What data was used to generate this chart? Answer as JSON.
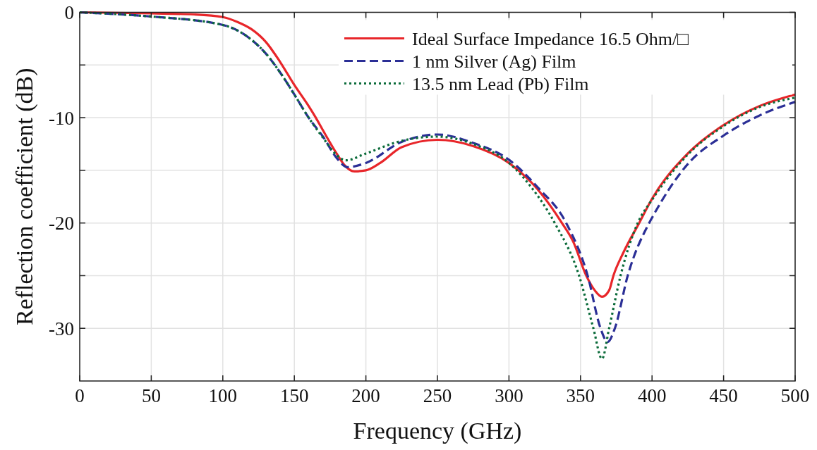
{
  "chart_data": {
    "type": "line",
    "xlabel": "Frequency (GHz)",
    "ylabel": "Reflection coefficient (dB)",
    "xlim": [
      0,
      500
    ],
    "xticks": [
      0,
      50,
      100,
      150,
      200,
      250,
      300,
      350,
      400,
      450,
      500
    ],
    "ylim": [
      -35,
      0
    ],
    "yticks": [
      0,
      {
        "value": -5,
        "label": null
      },
      -10,
      {
        "value": -15,
        "label": null
      },
      -20,
      {
        "value": -25,
        "label": null
      },
      -30
    ],
    "grid": true,
    "legend": "top right",
    "marker": "none",
    "series": [
      {
        "name": "Ideal Surface Impedance 16.5 Ohm/□",
        "color": "#e8262a",
        "line_style": "solid",
        "x": [
          0,
          50,
          80,
          100,
          110,
          120,
          130,
          140,
          150,
          160,
          165,
          170,
          180,
          185,
          192,
          200,
          210,
          225,
          250,
          275,
          300,
          320,
          337,
          345,
          354,
          360,
          365,
          370,
          373,
          380,
          391,
          400,
          425,
          450,
          475,
          500
        ],
        "values": [
          0,
          -0.1,
          -0.2,
          -0.45,
          -0.9,
          -1.6,
          -2.8,
          -4.7,
          -6.9,
          -8.9,
          -10,
          -11.2,
          -13.5,
          -14.5,
          -15.1,
          -15.0,
          -14.3,
          -12.8,
          -12.1,
          -12.7,
          -14.3,
          -16.8,
          -20,
          -21.8,
          -25,
          -26.4,
          -27.0,
          -26.4,
          -25,
          -22.8,
          -20,
          -17.7,
          -13.4,
          -10.7,
          -8.9,
          -7.8
        ]
      },
      {
        "name": "1 nm Silver (Ag) Film",
        "color": "#2b2f96",
        "line_style": "dashed",
        "x": [
          0,
          50,
          100,
          120,
          130,
          140,
          150,
          160,
          170,
          180,
          187,
          200,
          225,
          250,
          275,
          300,
          320,
          340,
          355,
          364,
          369,
          374,
          383,
          398,
          400,
          425,
          450,
          475,
          500
        ],
        "values": [
          0,
          -0.4,
          -1.2,
          -2.6,
          -3.9,
          -5.7,
          -7.8,
          -10,
          -11.8,
          -13.9,
          -14.7,
          -14.3,
          -12.3,
          -11.6,
          -12.4,
          -14.0,
          -16.6,
          -20,
          -25,
          -30,
          -31.3,
          -30,
          -25,
          -20,
          -19.5,
          -14.4,
          -11.7,
          -9.8,
          -8.5
        ]
      },
      {
        "name": "13.5 nm Lead (Pb) Film",
        "color": "#0b6b3a",
        "line_style": "dotted",
        "x": [
          0,
          50,
          100,
          120,
          130,
          140,
          150,
          160,
          170,
          180,
          186,
          200,
          225,
          250,
          275,
          300,
          315,
          332,
          349,
          359,
          365,
          370,
          378,
          390,
          400,
          425,
          450,
          475,
          500
        ],
        "values": [
          0,
          -0.4,
          -1.2,
          -2.6,
          -3.9,
          -5.7,
          -7.8,
          -10,
          -11.9,
          -13.6,
          -14.05,
          -13.4,
          -12.2,
          -11.8,
          -12.5,
          -14.3,
          -16.5,
          -20,
          -25,
          -30,
          -32.9,
          -30,
          -25,
          -20,
          -17.8,
          -13.5,
          -10.8,
          -9.0,
          -8.1
        ]
      }
    ]
  }
}
